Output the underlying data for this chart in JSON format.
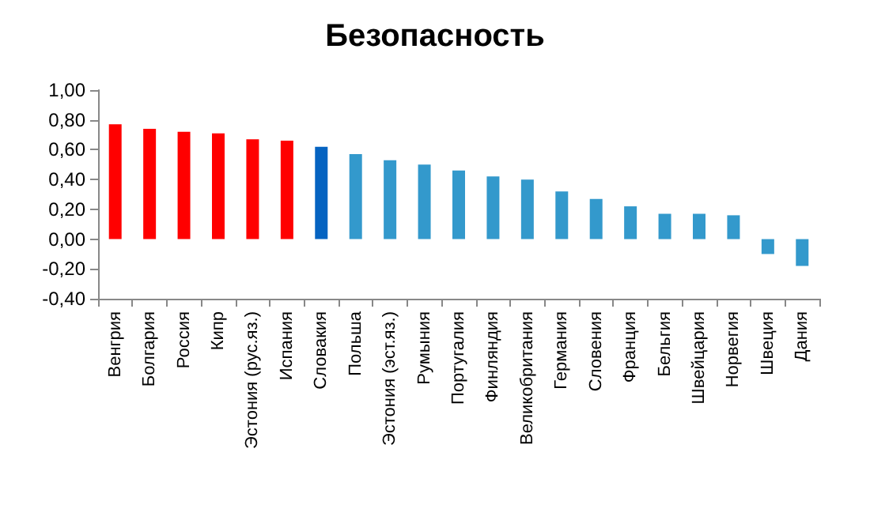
{
  "chart_data": {
    "type": "bar",
    "title": "Безопасность",
    "categories": [
      "Венгрия",
      "Болгария",
      "Россия",
      "Кипр",
      "Эстония (рус.яз.)",
      "Испания",
      "Словакия",
      "Польша",
      "Эстония (эст.яз.)",
      "Румыния",
      "Португалия",
      "Финляндия",
      "Великобритания",
      "Германия",
      "Словения",
      "Франция",
      "Бельгия",
      "Швейцария",
      "Норвегия",
      "Швеция",
      "Дания"
    ],
    "values": [
      0.77,
      0.74,
      0.72,
      0.71,
      0.67,
      0.66,
      0.62,
      0.57,
      0.53,
      0.5,
      0.46,
      0.42,
      0.4,
      0.32,
      0.27,
      0.22,
      0.17,
      0.17,
      0.16,
      -0.1,
      -0.18
    ],
    "colors": [
      "#ff0000",
      "#ff0000",
      "#ff0000",
      "#ff0000",
      "#ff0000",
      "#ff0000",
      "#0563c1",
      "#3399cc",
      "#3399cc",
      "#3399cc",
      "#3399cc",
      "#3399cc",
      "#3399cc",
      "#3399cc",
      "#3399cc",
      "#3399cc",
      "#3399cc",
      "#3399cc",
      "#3399cc",
      "#3399cc",
      "#3399cc"
    ],
    "ylim": [
      -0.4,
      1
    ],
    "yticks": [
      {
        "value": -0.4,
        "label": "-0,40"
      },
      {
        "value": -0.2,
        "label": "-0,20"
      },
      {
        "value": 0,
        "label": "0,00"
      },
      {
        "value": 0.2,
        "label": "0,20"
      },
      {
        "value": 0.4,
        "label": "0,40"
      },
      {
        "value": 0.6,
        "label": "0,60"
      },
      {
        "value": 0.8,
        "label": "0,80"
      },
      {
        "value": 1,
        "label": "1,00"
      }
    ],
    "grid": false
  }
}
